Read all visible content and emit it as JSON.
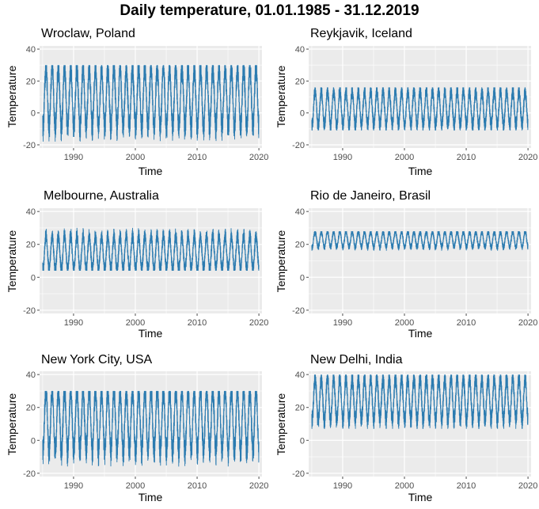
{
  "title": "Daily temperature, 01.01.1985 - 31.12.2019",
  "colors": {
    "series": "#2b7bb0",
    "panel_bg": "#ebebeb",
    "grid": "#ffffff",
    "tick": "#4d4d4d"
  },
  "chart_data": [
    {
      "type": "line",
      "title": "Wroclaw, Poland",
      "xlabel": "Time",
      "ylabel": "Temperature",
      "xlim": [
        1984.5,
        2020.5
      ],
      "ylim": [
        -22,
        42
      ],
      "x_ticks": [
        1990,
        2000,
        2010,
        2020
      ],
      "y_ticks": [
        -20,
        0,
        20,
        40
      ],
      "grid": true,
      "x_range": [
        1985,
        2020
      ],
      "seasonal_peaks_per_year": 1,
      "approx_max": 30,
      "approx_min": -18,
      "mean": 9.5
    },
    {
      "type": "line",
      "title": "Reykjavik, Iceland",
      "xlabel": "Time",
      "ylabel": "Temperature",
      "xlim": [
        1984.5,
        2020.5
      ],
      "ylim": [
        -22,
        42
      ],
      "x_ticks": [
        1990,
        2000,
        2010,
        2020
      ],
      "y_ticks": [
        -20,
        0,
        20,
        40
      ],
      "grid": true,
      "x_range": [
        1985,
        2020
      ],
      "seasonal_peaks_per_year": 1,
      "approx_max": 16,
      "approx_min": -11,
      "mean": 3
    },
    {
      "type": "line",
      "title": "Melbourne, Australia",
      "xlabel": "Time",
      "ylabel": "Temperature",
      "xlim": [
        1984.5,
        2020.5
      ],
      "ylim": [
        -22,
        42
      ],
      "x_ticks": [
        1990,
        2000,
        2010,
        2020
      ],
      "y_ticks": [
        -20,
        0,
        20,
        40
      ],
      "grid": true,
      "x_range": [
        1985,
        2020
      ],
      "seasonal_peaks_per_year": 1,
      "approx_max": 30,
      "approx_min": 4,
      "mean": 15
    },
    {
      "type": "line",
      "title": "Rio de Janeiro, Brasil",
      "xlabel": "Time",
      "ylabel": "Temperature",
      "xlim": [
        1984.5,
        2020.5
      ],
      "ylim": [
        -22,
        42
      ],
      "x_ticks": [
        1990,
        2000,
        2010,
        2020
      ],
      "y_ticks": [
        -20,
        0,
        20,
        40
      ],
      "grid": true,
      "x_range": [
        1985,
        2020
      ],
      "seasonal_peaks_per_year": 1,
      "approx_max": 28,
      "approx_min": 16,
      "mean": 23
    },
    {
      "type": "line",
      "title": "New York City, USA",
      "xlabel": "Time",
      "ylabel": "Temperature",
      "xlim": [
        1984.5,
        2020.5
      ],
      "ylim": [
        -22,
        42
      ],
      "x_ticks": [
        1990,
        2000,
        2010,
        2020
      ],
      "y_ticks": [
        -20,
        0,
        20,
        40
      ],
      "grid": true,
      "x_range": [
        1985,
        2020
      ],
      "seasonal_peaks_per_year": 1,
      "approx_max": 30,
      "approx_min": -18,
      "mean": 12
    },
    {
      "type": "line",
      "title": "New Delhi, India",
      "xlabel": "Time",
      "ylabel": "Temperature",
      "xlim": [
        1984.5,
        2020.5
      ],
      "ylim": [
        -22,
        42
      ],
      "x_ticks": [
        1990,
        2000,
        2010,
        2020
      ],
      "y_ticks": [
        -20,
        0,
        20,
        40
      ],
      "grid": true,
      "x_range": [
        1985,
        2020
      ],
      "seasonal_peaks_per_year": 1,
      "approx_max": 40,
      "approx_min": 7,
      "mean": 25
    }
  ]
}
